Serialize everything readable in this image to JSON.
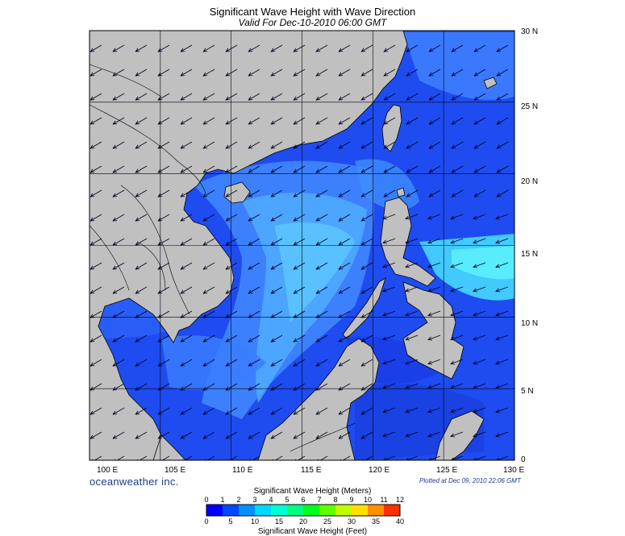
{
  "title": "Significant Wave Height with Wave Direction",
  "subtitle": "Valid For Dec-10-2010 06:00 GMT",
  "brand": "oceanweather inc.",
  "plotted": "Plotted at Dec 09, 2010 22:06 GMT",
  "map": {
    "lon_range": [
      100,
      130
    ],
    "lat_range": [
      0,
      30
    ],
    "lon_labels": [
      "100 E",
      "105 E",
      "110 E",
      "115 E",
      "120 E",
      "125 E",
      "130 E"
    ],
    "lat_labels": [
      "30 N",
      "25 N",
      "20 N",
      "15 N",
      "10 N",
      "5 N",
      "0"
    ],
    "land_color": "#c0c0c0",
    "sea_color": "#2a55ff",
    "arrow_color": "#000033"
  },
  "colorbar": {
    "meters_title": "Significant Wave Height (Meters)",
    "feet_title": "Significant Wave Height (Feet)",
    "meters_ticks": [
      "0",
      "1",
      "2",
      "3",
      "4",
      "5",
      "6",
      "7",
      "8",
      "9",
      "10",
      "11",
      "12"
    ],
    "feet_ticks": [
      "0",
      "5",
      "10",
      "15",
      "20",
      "25",
      "30",
      "35",
      "40"
    ],
    "colors": [
      "#0000ff",
      "#0048ff",
      "#0090ff",
      "#00d8ff",
      "#00ffd0",
      "#00ff80",
      "#00ff20",
      "#60ff00",
      "#c0ff00",
      "#ffe000",
      "#ff9000",
      "#ff3000"
    ]
  }
}
